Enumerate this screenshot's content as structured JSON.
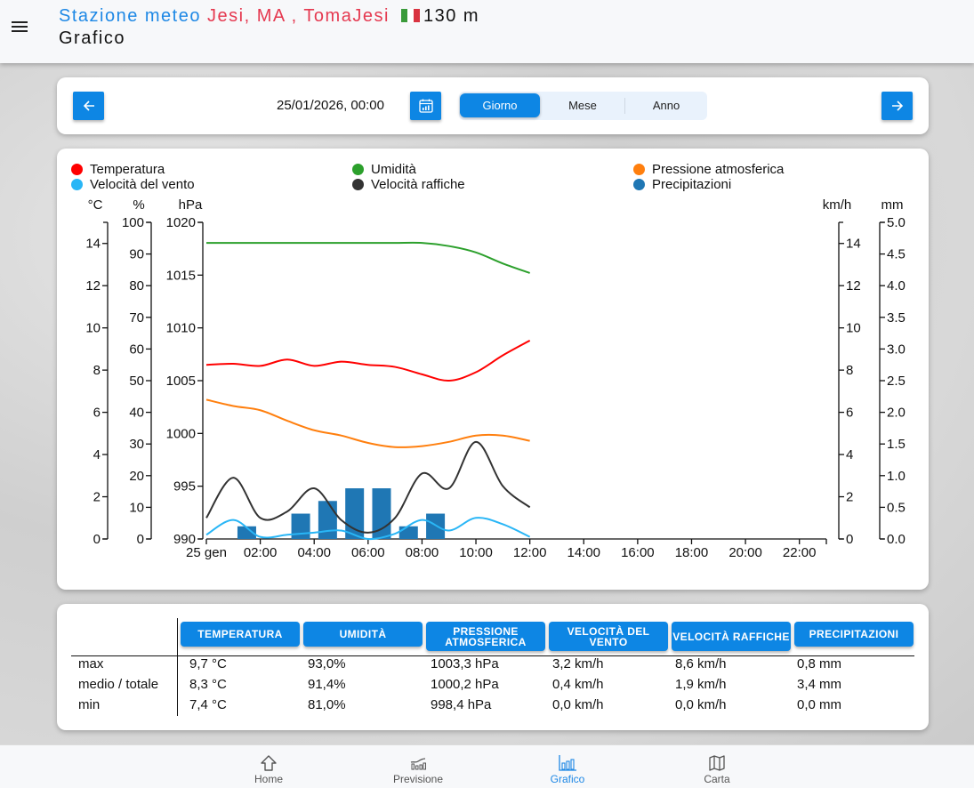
{
  "header": {
    "title_prefix": "Stazione meteo",
    "location": "Jesi, MA , TomaJesi",
    "altitude": "130 m",
    "subtitle": "Grafico",
    "flag_colors": [
      "#3a9a3a",
      "#ffffff",
      "#d93341"
    ],
    "menu_icon": "hamburger-icon"
  },
  "toolbar": {
    "prev_icon": "arrow-left-icon",
    "next_icon": "arrow-right-icon",
    "calendar_icon": "calendar-icon",
    "date": "25/01/2026, 00:00",
    "periods": [
      {
        "label": "Giorno",
        "active": true
      },
      {
        "label": "Mese",
        "active": false
      },
      {
        "label": "Anno",
        "active": false
      }
    ]
  },
  "chart_data": {
    "type": "line",
    "title": "",
    "legend_position": "top",
    "legend": [
      {
        "name": "Temperatura",
        "color": "#ff0000"
      },
      {
        "name": "Umidità",
        "color": "#2ca02c"
      },
      {
        "name": "Pressione atmosferica",
        "color": "#ff7f0e"
      },
      {
        "name": "Velocità del vento",
        "color": "#29b6f6"
      },
      {
        "name": "Velocità raffiche",
        "color": "#333333"
      },
      {
        "name": "Precipitazioni",
        "color": "#1f77b4"
      }
    ],
    "x_ticks": [
      "25 gen",
      "02:00",
      "04:00",
      "06:00",
      "08:00",
      "10:00",
      "12:00",
      "14:00",
      "16:00",
      "18:00",
      "20:00",
      "22:00"
    ],
    "x_tick_hours": [
      0,
      2,
      4,
      6,
      8,
      10,
      12,
      14,
      16,
      18,
      20,
      22
    ],
    "x_range_hours": [
      0,
      23
    ],
    "axes": {
      "temperature": {
        "unit": "°C",
        "range": [
          0,
          15
        ],
        "ticks": [
          0,
          2,
          4,
          6,
          8,
          10,
          12,
          14
        ],
        "side": "left"
      },
      "humidity": {
        "unit": "%",
        "range": [
          0,
          100
        ],
        "ticks": [
          0,
          10,
          20,
          30,
          40,
          50,
          60,
          70,
          80,
          90,
          100
        ],
        "side": "left"
      },
      "pressure": {
        "unit": "hPa",
        "range": [
          990,
          1020
        ],
        "ticks": [
          990,
          995,
          1000,
          1005,
          1010,
          1015,
          1020
        ],
        "side": "left"
      },
      "speed": {
        "unit": "km/h",
        "range": [
          0,
          15
        ],
        "ticks": [
          0,
          2,
          4,
          6,
          8,
          10,
          12,
          14
        ],
        "side": "right"
      },
      "precip": {
        "unit": "mm",
        "range": [
          0,
          5
        ],
        "ticks": [
          "0.0",
          "0.5",
          "1.0",
          "1.5",
          "2.0",
          "2.5",
          "3.0",
          "3.5",
          "4.0",
          "4.5",
          "5.0"
        ],
        "side": "right"
      }
    },
    "x_hours": [
      0,
      1,
      2,
      3,
      4,
      5,
      6,
      7,
      8,
      9,
      10,
      11,
      12
    ],
    "series": [
      {
        "name": "Umidità",
        "axis": "humidity",
        "color": "#2ca02c",
        "values": [
          93.5,
          93.5,
          93.5,
          93.5,
          93.5,
          93.5,
          93.5,
          93.5,
          93.5,
          92.5,
          90.5,
          87,
          84
        ]
      },
      {
        "name": "Temperatura",
        "axis": "temperature",
        "color": "#ff0000",
        "values": [
          8.25,
          8.3,
          8.2,
          8.5,
          8.2,
          8.4,
          8.25,
          8.15,
          7.8,
          7.5,
          7.9,
          8.7,
          9.4
        ]
      },
      {
        "name": "Pressione atmosferica",
        "axis": "pressure",
        "color": "#ff7f0e",
        "values": [
          1003.2,
          1002.6,
          1002.2,
          1001.2,
          1000.3,
          999.8,
          999.1,
          998.7,
          998.8,
          999.2,
          999.8,
          999.8,
          999.3
        ]
      },
      {
        "name": "Velocità raffiche",
        "axis": "speed",
        "color": "#333333",
        "values": [
          1.0,
          2.9,
          1.0,
          1.3,
          2.4,
          0.9,
          0.3,
          1.0,
          3.1,
          2.4,
          4.6,
          2.5,
          1.5
        ]
      },
      {
        "name": "Velocità del vento",
        "axis": "speed",
        "color": "#29b6f6",
        "values": [
          0.2,
          0.9,
          0.1,
          0.2,
          0.3,
          0.4,
          0.0,
          0.25,
          0.9,
          0.4,
          1.0,
          0.7,
          0.1
        ]
      }
    ],
    "bars": {
      "name": "Precipitazioni",
      "axis": "precip",
      "color": "#1f77b4",
      "hours": [
        1.5,
        3.5,
        4.5,
        5.5,
        6.5,
        7.5,
        8.5
      ],
      "values": [
        0.2,
        0.4,
        0.6,
        0.8,
        0.8,
        0.2,
        0.4
      ]
    }
  },
  "summary": {
    "columns": [
      "TEMPERATURA",
      "UMIDITÀ",
      "PRESSIONE ATMOSFERICA",
      "VELOCITÀ DEL VENTO",
      "VELOCITÀ RAFFICHE",
      "PRECIPITAZIONI"
    ],
    "rows": [
      {
        "label": "max",
        "values": [
          "9,7 °C",
          "93,0%",
          "1003,3 hPa",
          "3,2 km/h",
          "8,6 km/h",
          "0,8 mm"
        ]
      },
      {
        "label": "medio / totale",
        "values": [
          "8,3 °C",
          "91,4%",
          "1000,2 hPa",
          "0,4 km/h",
          "1,9 km/h",
          "3,4 mm"
        ]
      },
      {
        "label": "min",
        "values": [
          "7,4 °C",
          "81,0%",
          "998,4 hPa",
          "0,0 km/h",
          "0,0 km/h",
          "0,0 mm"
        ]
      }
    ]
  },
  "nav": {
    "items": [
      {
        "label": "Home",
        "icon": "home-icon",
        "active": false
      },
      {
        "label": "Previsione",
        "icon": "forecast-chart-icon",
        "active": false
      },
      {
        "label": "Grafico",
        "icon": "bar-chart-icon",
        "active": true
      },
      {
        "label": "Carta",
        "icon": "map-icon",
        "active": false
      }
    ]
  }
}
